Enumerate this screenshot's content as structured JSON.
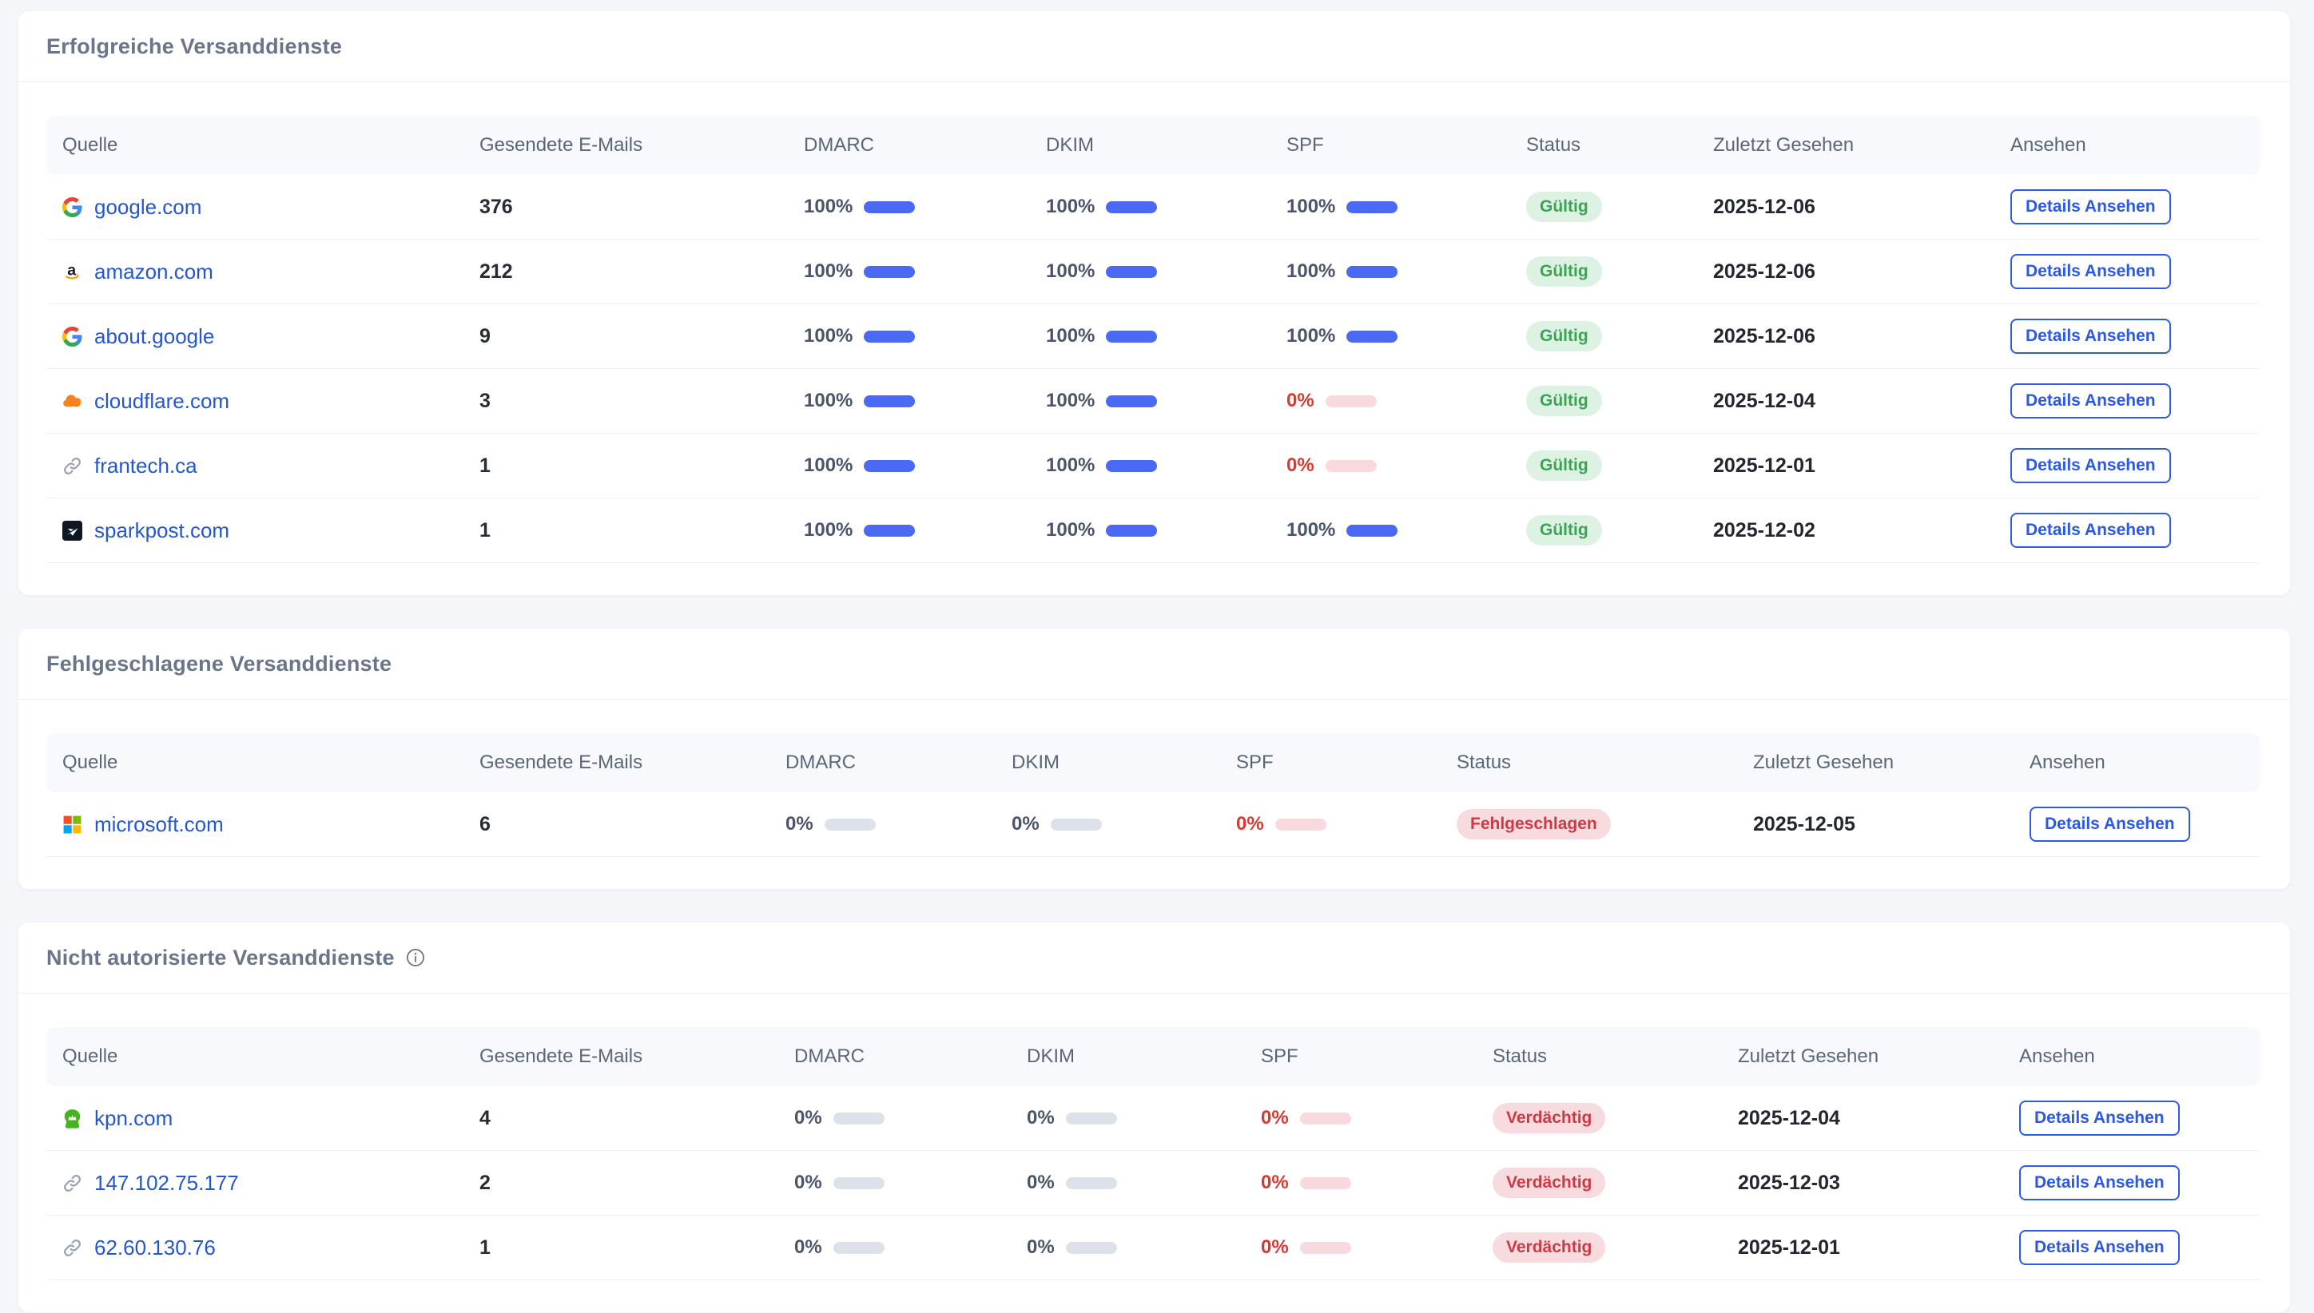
{
  "colors": {
    "page_background": "#f4f6f9",
    "link_blue": "#2456d0",
    "accent_blue": "#2c58e8",
    "bar_blue": "#4b69f2",
    "bar_gray": "#dde2ea",
    "bar_pink": "#f8dade",
    "percent_red": "#d63a31",
    "badge_green_bg": "#ddf2e2",
    "badge_green_text": "#3da255",
    "badge_red_bg": "#f8dbde",
    "badge_red_text": "#cc3a45"
  },
  "tables": [
    {
      "title": "Erfolgreiche Versanddienste",
      "columns": [
        "Quelle",
        "Gesendete E-Mails",
        "DMARC",
        "DKIM",
        "SPF",
        "Status",
        "Zuletzt Gesehen",
        "Ansehen"
      ],
      "action_label": "Details Ansehen",
      "rows": [
        {
          "source": {
            "label": "google.com",
            "icon": "google"
          },
          "sent": "376",
          "checks": {
            "dmarc": {
              "value": "100%",
              "state": "ok"
            },
            "dkim": {
              "value": "100%",
              "state": "ok"
            },
            "spf": {
              "value": "100%",
              "state": "ok"
            }
          },
          "status": {
            "label": "Gültig",
            "state": "valid"
          },
          "last_seen": "2025-12-06"
        },
        {
          "source": {
            "label": "amazon.com",
            "icon": "amazon"
          },
          "sent": "212",
          "checks": {
            "dmarc": {
              "value": "100%",
              "state": "ok"
            },
            "dkim": {
              "value": "100%",
              "state": "ok"
            },
            "spf": {
              "value": "100%",
              "state": "ok"
            }
          },
          "status": {
            "label": "Gültig",
            "state": "valid"
          },
          "last_seen": "2025-12-06"
        },
        {
          "source": {
            "label": "about.google",
            "icon": "google"
          },
          "sent": "9",
          "checks": {
            "dmarc": {
              "value": "100%",
              "state": "ok"
            },
            "dkim": {
              "value": "100%",
              "state": "ok"
            },
            "spf": {
              "value": "100%",
              "state": "ok"
            }
          },
          "status": {
            "label": "Gültig",
            "state": "valid"
          },
          "last_seen": "2025-12-06"
        },
        {
          "source": {
            "label": "cloudflare.com",
            "icon": "cloudflare"
          },
          "sent": "3",
          "checks": {
            "dmarc": {
              "value": "100%",
              "state": "ok"
            },
            "dkim": {
              "value": "100%",
              "state": "ok"
            },
            "spf": {
              "value": "0%",
              "state": "bad"
            }
          },
          "status": {
            "label": "Gültig",
            "state": "valid"
          },
          "last_seen": "2025-12-04"
        },
        {
          "source": {
            "label": "frantech.ca",
            "icon": "link"
          },
          "sent": "1",
          "checks": {
            "dmarc": {
              "value": "100%",
              "state": "ok"
            },
            "dkim": {
              "value": "100%",
              "state": "ok"
            },
            "spf": {
              "value": "0%",
              "state": "bad"
            }
          },
          "status": {
            "label": "Gültig",
            "state": "valid"
          },
          "last_seen": "2025-12-01"
        },
        {
          "source": {
            "label": "sparkpost.com",
            "icon": "sparkpost"
          },
          "sent": "1",
          "checks": {
            "dmarc": {
              "value": "100%",
              "state": "ok"
            },
            "dkim": {
              "value": "100%",
              "state": "ok"
            },
            "spf": {
              "value": "100%",
              "state": "ok"
            }
          },
          "status": {
            "label": "Gültig",
            "state": "valid"
          },
          "last_seen": "2025-12-02"
        }
      ]
    },
    {
      "title": "Fehlgeschlagene Versanddienste",
      "columns": [
        "Quelle",
        "Gesendete E-Mails",
        "DMARC",
        "DKIM",
        "SPF",
        "Status",
        "Zuletzt Gesehen",
        "Ansehen"
      ],
      "action_label": "Details Ansehen",
      "rows": [
        {
          "source": {
            "label": "microsoft.com",
            "icon": "microsoft"
          },
          "sent": "6",
          "checks": {
            "dmarc": {
              "value": "0%",
              "state": "neutral"
            },
            "dkim": {
              "value": "0%",
              "state": "neutral"
            },
            "spf": {
              "value": "0%",
              "state": "bad"
            }
          },
          "status": {
            "label": "Fehlgeschlagen",
            "state": "failed"
          },
          "last_seen": "2025-12-05"
        }
      ]
    },
    {
      "title": "Nicht autorisierte Versanddienste",
      "info_icon": "info-circle-icon",
      "columns": [
        "Quelle",
        "Gesendete E-Mails",
        "DMARC",
        "DKIM",
        "SPF",
        "Status",
        "Zuletzt Gesehen",
        "Ansehen"
      ],
      "action_label": "Details Ansehen",
      "rows": [
        {
          "source": {
            "label": "kpn.com",
            "icon": "kpn"
          },
          "sent": "4",
          "checks": {
            "dmarc": {
              "value": "0%",
              "state": "neutral"
            },
            "dkim": {
              "value": "0%",
              "state": "neutral"
            },
            "spf": {
              "value": "0%",
              "state": "bad"
            }
          },
          "status": {
            "label": "Verdächtig",
            "state": "suspicious"
          },
          "last_seen": "2025-12-04"
        },
        {
          "source": {
            "label": "147.102.75.177",
            "icon": "link"
          },
          "sent": "2",
          "checks": {
            "dmarc": {
              "value": "0%",
              "state": "neutral"
            },
            "dkim": {
              "value": "0%",
              "state": "neutral"
            },
            "spf": {
              "value": "0%",
              "state": "bad"
            }
          },
          "status": {
            "label": "Verdächtig",
            "state": "suspicious"
          },
          "last_seen": "2025-12-03"
        },
        {
          "source": {
            "label": "62.60.130.76",
            "icon": "link"
          },
          "sent": "1",
          "checks": {
            "dmarc": {
              "value": "0%",
              "state": "neutral"
            },
            "dkim": {
              "value": "0%",
              "state": "neutral"
            },
            "spf": {
              "value": "0%",
              "state": "bad"
            }
          },
          "status": {
            "label": "Verdächtig",
            "state": "suspicious"
          },
          "last_seen": "2025-12-01"
        }
      ]
    }
  ]
}
